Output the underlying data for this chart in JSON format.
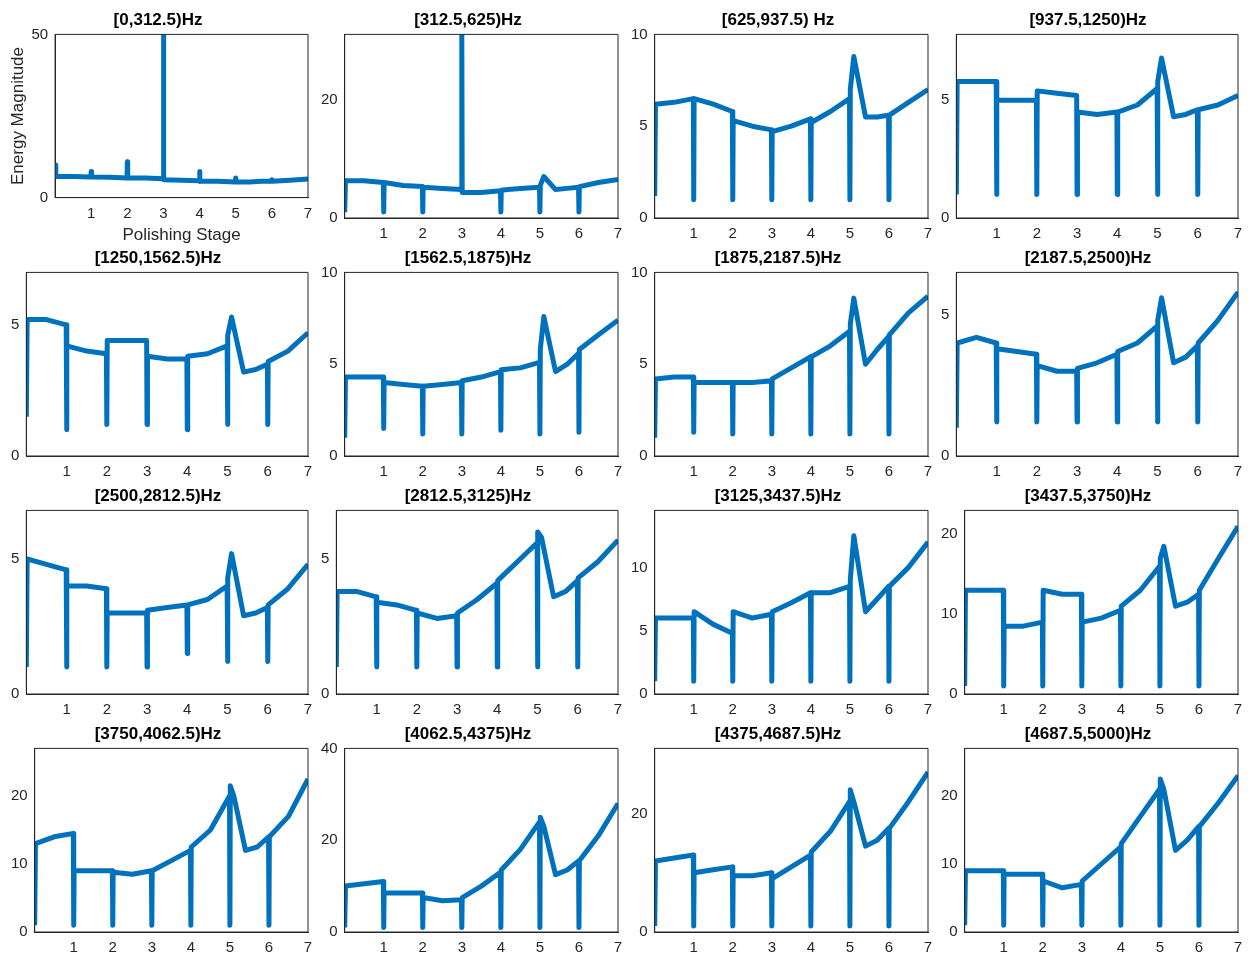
{
  "chart_data": [
    {
      "type": "line",
      "title": "[0,312.5)Hz",
      "xlabel": "Polishing Stage",
      "ylabel": "Energy Magnitude",
      "xlim": [
        0,
        7
      ],
      "xticks": [
        1,
        2,
        3,
        4,
        5,
        6,
        7
      ],
      "ylim": [
        0,
        50
      ],
      "yticks": [
        0,
        50
      ],
      "x": [
        0,
        0.02,
        0.5,
        0.99,
        1,
        1.01,
        1.5,
        1.99,
        2,
        2.01,
        2.5,
        2.99,
        3,
        3.01,
        3.5,
        3.99,
        4,
        4.01,
        4.5,
        4.99,
        5,
        5.01,
        5.1,
        5.4,
        5.7,
        5.99,
        6,
        6.01,
        6.5,
        7
      ],
      "series": [
        {
          "color": "#0072bd",
          "values": [
            10,
            6.5,
            6.5,
            6.3,
            8,
            6.3,
            6.2,
            6,
            11,
            6,
            6,
            5.8,
            50,
            5.5,
            5.3,
            5.2,
            8,
            5,
            5,
            4.8,
            6,
            4.8,
            4.8,
            4.8,
            5,
            5,
            5.5,
            5,
            5.3,
            5.7
          ]
        }
      ]
    },
    {
      "type": "line",
      "title": "[312.5,625)Hz",
      "xlim": [
        0,
        7
      ],
      "xticks": [
        1,
        2,
        3,
        4,
        5,
        6,
        7
      ],
      "ylim": [
        0,
        31
      ],
      "yticks": [
        0,
        20
      ],
      "x": [
        0,
        0.02,
        0.5,
        0.99,
        1,
        1.01,
        1.5,
        1.99,
        2,
        2.01,
        2.5,
        2.99,
        3,
        3.01,
        3.5,
        3.99,
        4,
        4.01,
        4.5,
        4.99,
        5,
        5.01,
        5.1,
        5.4,
        5.7,
        5.99,
        6,
        6.01,
        6.5,
        7
      ],
      "series": [
        {
          "color": "#0072bd",
          "values": [
            1,
            6.3,
            6.3,
            6,
            1,
            6,
            5.5,
            5.3,
            1,
            5.2,
            5,
            4.8,
            31,
            4.3,
            4.3,
            4.6,
            1,
            4.7,
            5,
            5.2,
            1,
            5.5,
            7,
            4.8,
            5,
            5.2,
            1,
            5.3,
            6,
            6.5
          ]
        }
      ]
    },
    {
      "type": "line",
      "title": "[625,937.5) Hz",
      "xlim": [
        0,
        7
      ],
      "xticks": [
        1,
        2,
        3,
        4,
        5,
        6,
        7
      ],
      "ylim": [
        0,
        10
      ],
      "yticks": [
        0,
        5,
        10
      ],
      "x": [
        0,
        0.02,
        0.5,
        0.99,
        1,
        1.01,
        1.5,
        1.99,
        2,
        2.01,
        2.5,
        2.99,
        3,
        3.01,
        3.5,
        3.99,
        4,
        4.01,
        4.5,
        4.99,
        5,
        5.01,
        5.1,
        5.4,
        5.7,
        5.99,
        6,
        6.01,
        6.5,
        7
      ],
      "series": [
        {
          "color": "#0072bd",
          "values": [
            1.2,
            6.2,
            6.3,
            6.5,
            1,
            6.5,
            6.2,
            5.8,
            1,
            5.3,
            5,
            4.8,
            1,
            4.7,
            5,
            5.4,
            1,
            5.2,
            5.8,
            6.5,
            1,
            7,
            8.8,
            5.5,
            5.5,
            5.6,
            1,
            5.6,
            6.3,
            7
          ]
        }
      ]
    },
    {
      "type": "line",
      "title": "[937.5,1250)Hz",
      "xlim": [
        0,
        7
      ],
      "xticks": [
        1,
        2,
        3,
        4,
        5,
        6,
        7
      ],
      "ylim": [
        0,
        7.8
      ],
      "yticks": [
        0,
        5
      ],
      "x": [
        0,
        0.02,
        0.5,
        0.99,
        1,
        1.01,
        1.5,
        1.99,
        2,
        2.01,
        2.5,
        2.99,
        3,
        3.01,
        3.5,
        3.99,
        4,
        4.01,
        4.5,
        4.99,
        5,
        5.01,
        5.1,
        5.4,
        5.7,
        5.99,
        6,
        6.01,
        6.5,
        7
      ],
      "series": [
        {
          "color": "#0072bd",
          "values": [
            1,
            5.8,
            5.8,
            5.8,
            1,
            5,
            5,
            5,
            1,
            5.4,
            5.3,
            5.2,
            1,
            4.5,
            4.4,
            4.5,
            1,
            4.5,
            4.8,
            5.5,
            1,
            5.8,
            6.8,
            4.3,
            4.4,
            4.6,
            1,
            4.6,
            4.8,
            5.2
          ]
        }
      ]
    },
    {
      "type": "line",
      "title": "[1250,1562.5)Hz",
      "xlim": [
        0,
        7
      ],
      "xticks": [
        1,
        2,
        3,
        4,
        5,
        6,
        7
      ],
      "ylim": [
        0,
        7
      ],
      "yticks": [
        0,
        5
      ],
      "x": [
        0,
        0.02,
        0.5,
        0.99,
        1,
        1.01,
        1.5,
        1.99,
        2,
        2.01,
        2.5,
        2.99,
        3,
        3.01,
        3.5,
        3.99,
        4,
        4.01,
        4.5,
        4.99,
        5,
        5.01,
        5.1,
        5.4,
        5.7,
        5.99,
        6,
        6.01,
        6.5,
        7
      ],
      "series": [
        {
          "color": "#0072bd",
          "values": [
            1.5,
            5.2,
            5.2,
            5,
            1,
            4.2,
            4,
            3.9,
            1.2,
            4.4,
            4.4,
            4.4,
            1.2,
            3.8,
            3.7,
            3.7,
            1,
            3.8,
            3.9,
            4.2,
            1.2,
            4.6,
            5.3,
            3.2,
            3.3,
            3.5,
            1.2,
            3.6,
            4,
            4.7
          ]
        }
      ]
    },
    {
      "type": "line",
      "title": "[1562.5,1875)Hz",
      "xlim": [
        0,
        7
      ],
      "xticks": [
        1,
        2,
        3,
        4,
        5,
        6,
        7
      ],
      "ylim": [
        0,
        10
      ],
      "yticks": [
        0,
        5,
        10
      ],
      "x": [
        0,
        0.02,
        0.5,
        0.99,
        1,
        1.01,
        1.5,
        1.99,
        2,
        2.01,
        2.5,
        2.99,
        3,
        3.01,
        3.5,
        3.99,
        4,
        4.01,
        4.5,
        4.99,
        5,
        5.01,
        5.1,
        5.4,
        5.7,
        5.99,
        6,
        6.01,
        6.5,
        7
      ],
      "series": [
        {
          "color": "#0072bd",
          "values": [
            1,
            4.3,
            4.3,
            4.3,
            1.5,
            4,
            3.9,
            3.8,
            1.2,
            3.8,
            3.9,
            4,
            1.2,
            4.1,
            4.3,
            4.6,
            1.4,
            4.7,
            4.8,
            5.1,
            1.2,
            5.8,
            7.6,
            4.6,
            5,
            5.6,
            1.3,
            5.8,
            6.6,
            7.4
          ]
        }
      ]
    },
    {
      "type": "line",
      "title": "[1875,2187.5)Hz",
      "xlim": [
        0,
        7
      ],
      "xticks": [
        1,
        2,
        3,
        4,
        5,
        6,
        7
      ],
      "ylim": [
        0,
        10
      ],
      "yticks": [
        0,
        5,
        10
      ],
      "x": [
        0,
        0.02,
        0.5,
        0.99,
        1,
        1.01,
        1.5,
        1.99,
        2,
        2.01,
        2.5,
        2.99,
        3,
        3.01,
        3.5,
        3.99,
        4,
        4.01,
        4.5,
        4.99,
        5,
        5.01,
        5.1,
        5.4,
        5.7,
        5.99,
        6,
        6.01,
        6.5,
        7
      ],
      "series": [
        {
          "color": "#0072bd",
          "values": [
            1,
            4.2,
            4.3,
            4.3,
            1.3,
            4,
            4,
            4,
            1.2,
            4,
            4,
            4.1,
            1.2,
            4.2,
            4.8,
            5.4,
            1.2,
            5.4,
            6,
            6.8,
            1.2,
            7.2,
            8.6,
            5,
            5.8,
            6.5,
            1.2,
            6.6,
            7.8,
            8.7
          ]
        }
      ]
    },
    {
      "type": "line",
      "title": "[2187.5,2500)Hz",
      "xlim": [
        0,
        7
      ],
      "xticks": [
        1,
        2,
        3,
        4,
        5,
        6,
        7
      ],
      "ylim": [
        0,
        6.5
      ],
      "yticks": [
        0,
        5
      ],
      "x": [
        0,
        0.02,
        0.5,
        0.99,
        1,
        1.01,
        1.5,
        1.99,
        2,
        2.01,
        2.5,
        2.99,
        3,
        3.01,
        3.5,
        3.99,
        4,
        4.01,
        4.5,
        4.99,
        5,
        5.01,
        5.1,
        5.4,
        5.7,
        5.99,
        6,
        6.01,
        6.5,
        7
      ],
      "series": [
        {
          "color": "#0072bd",
          "values": [
            1,
            4,
            4.2,
            4,
            1.2,
            3.8,
            3.7,
            3.6,
            1.2,
            3.2,
            3,
            3,
            1.2,
            3.1,
            3.3,
            3.6,
            1.2,
            3.7,
            4,
            4.6,
            1.2,
            4.8,
            5.6,
            3.3,
            3.5,
            3.9,
            1.2,
            4,
            4.8,
            5.8
          ]
        }
      ]
    },
    {
      "type": "line",
      "title": "[2500,2812.5)Hz",
      "xlim": [
        0,
        7
      ],
      "xticks": [
        1,
        2,
        3,
        4,
        5,
        6,
        7
      ],
      "ylim": [
        0,
        6.8
      ],
      "yticks": [
        0,
        5
      ],
      "x": [
        0,
        0.02,
        0.5,
        0.99,
        1,
        1.01,
        1.5,
        1.99,
        2,
        2.01,
        2.5,
        2.99,
        3,
        3.01,
        3.5,
        3.99,
        4,
        4.01,
        4.5,
        4.99,
        5,
        5.01,
        5.1,
        5.4,
        5.7,
        5.99,
        6,
        6.01,
        6.5,
        7
      ],
      "series": [
        {
          "color": "#0072bd",
          "values": [
            1,
            5,
            4.8,
            4.6,
            1,
            4,
            4,
            3.9,
            1,
            3,
            3,
            3,
            1,
            3.1,
            3.2,
            3.3,
            1.5,
            3.3,
            3.5,
            4,
            1.2,
            4.3,
            5.2,
            2.9,
            3,
            3.2,
            1.2,
            3.3,
            3.9,
            4.8
          ]
        }
      ]
    },
    {
      "type": "line",
      "title": "[2812.5,3125)Hz",
      "xlim": [
        0,
        7
      ],
      "xticks": [
        1,
        2,
        3,
        4,
        5,
        6,
        7
      ],
      "ylim": [
        0,
        6.8
      ],
      "yticks": [
        0,
        5
      ],
      "x": [
        0,
        0.02,
        0.5,
        0.99,
        1,
        1.01,
        1.5,
        1.99,
        2,
        2.01,
        2.5,
        2.99,
        3,
        3.01,
        3.5,
        3.99,
        4,
        4.01,
        4.5,
        4.99,
        5,
        5.01,
        5.1,
        5.4,
        5.7,
        5.99,
        6,
        6.01,
        6.5,
        7
      ],
      "series": [
        {
          "color": "#0072bd",
          "values": [
            1,
            3.8,
            3.8,
            3.6,
            1,
            3.4,
            3.3,
            3.1,
            1,
            3,
            2.8,
            2.9,
            1,
            3,
            3.5,
            4.1,
            1,
            4.2,
            4.9,
            5.6,
            1,
            6,
            5.8,
            3.6,
            3.8,
            4.2,
            1,
            4.3,
            4.9,
            5.7
          ]
        }
      ]
    },
    {
      "type": "line",
      "title": "[3125,3437.5)Hz",
      "xlim": [
        0,
        7
      ],
      "xticks": [
        1,
        2,
        3,
        4,
        5,
        6,
        7
      ],
      "ylim": [
        0,
        14.5
      ],
      "yticks": [
        0,
        5,
        10
      ],
      "x": [
        0,
        0.02,
        0.5,
        0.99,
        1,
        1.01,
        1.5,
        1.99,
        2,
        2.01,
        2.5,
        2.99,
        3,
        3.01,
        3.5,
        3.99,
        4,
        4.01,
        4.5,
        4.99,
        5,
        5.01,
        5.1,
        5.4,
        5.7,
        5.99,
        6,
        6.01,
        6.5,
        7
      ],
      "series": [
        {
          "color": "#0072bd",
          "values": [
            1,
            6,
            6,
            6,
            1,
            6.5,
            5.5,
            4.8,
            1,
            6.5,
            6,
            6.3,
            1,
            6.5,
            7.2,
            8,
            1,
            8,
            8,
            8.5,
            1,
            9,
            12.5,
            6.5,
            7.5,
            8.5,
            1,
            8.5,
            10,
            12
          ]
        }
      ]
    },
    {
      "type": "line",
      "title": "[3437.5,3750)Hz",
      "xlim": [
        0,
        7
      ],
      "xticks": [
        1,
        2,
        3,
        4,
        5,
        6,
        7
      ],
      "ylim": [
        0,
        23
      ],
      "yticks": [
        0,
        10,
        20
      ],
      "x": [
        0,
        0.02,
        0.5,
        0.99,
        1,
        1.01,
        1.5,
        1.99,
        2,
        2.01,
        2.5,
        2.99,
        3,
        3.01,
        3.5,
        3.99,
        4,
        4.01,
        4.5,
        4.99,
        5,
        5.01,
        5.1,
        5.4,
        5.7,
        5.99,
        6,
        6.01,
        6.5,
        7
      ],
      "series": [
        {
          "color": "#0072bd",
          "values": [
            1,
            13,
            13,
            13,
            1,
            8.5,
            8.5,
            9,
            1,
            13,
            12.5,
            12.5,
            1,
            9,
            9.5,
            10.5,
            1,
            11,
            13,
            16,
            1,
            17,
            18.5,
            11,
            11.5,
            12.5,
            1,
            13,
            17,
            21
          ]
        }
      ]
    },
    {
      "type": "line",
      "title": "[3750,4062.5)Hz",
      "xlim": [
        0,
        7
      ],
      "xticks": [
        1,
        2,
        3,
        4,
        5,
        6,
        7
      ],
      "ylim": [
        0,
        27
      ],
      "yticks": [
        0,
        10,
        20
      ],
      "x": [
        0,
        0.02,
        0.5,
        0.99,
        1,
        1.01,
        1.5,
        1.99,
        2,
        2.01,
        2.5,
        2.99,
        3,
        3.01,
        3.5,
        3.99,
        4,
        4.01,
        4.5,
        4.99,
        5,
        5.01,
        5.1,
        5.4,
        5.7,
        5.99,
        6,
        6.01,
        6.5,
        7
      ],
      "series": [
        {
          "color": "#0072bd",
          "values": [
            1,
            13,
            14,
            14.5,
            1,
            9,
            9,
            9,
            1,
            8.8,
            8.5,
            9,
            1,
            9,
            10.5,
            12,
            1,
            12.5,
            15,
            20,
            1,
            21.5,
            20,
            12,
            12.5,
            14,
            1,
            14,
            17,
            22.5
          ]
        }
      ]
    },
    {
      "type": "line",
      "title": "[4062.5,4375)Hz",
      "xlim": [
        0,
        7
      ],
      "xticks": [
        1,
        2,
        3,
        4,
        5,
        6,
        7
      ],
      "ylim": [
        0,
        40
      ],
      "yticks": [
        0,
        20,
        40
      ],
      "x": [
        0,
        0.02,
        0.5,
        0.99,
        1,
        1.01,
        1.5,
        1.99,
        2,
        2.01,
        2.5,
        2.99,
        3,
        3.01,
        3.5,
        3.99,
        4,
        4.01,
        4.5,
        4.99,
        5,
        5.01,
        5.1,
        5.4,
        5.7,
        5.99,
        6,
        6.01,
        6.5,
        7
      ],
      "series": [
        {
          "color": "#0072bd",
          "values": [
            1,
            10,
            10.5,
            11,
            1,
            8.5,
            8.5,
            8.5,
            1,
            7.5,
            6.8,
            7,
            1,
            7.5,
            10,
            13,
            1,
            13.5,
            18,
            24,
            1,
            25,
            23,
            12.5,
            13.5,
            15.5,
            1,
            15.5,
            21,
            28
          ]
        }
      ]
    },
    {
      "type": "line",
      "title": "[4375,4687.5)Hz",
      "xlim": [
        0,
        7
      ],
      "xticks": [
        1,
        2,
        3,
        4,
        5,
        6,
        7
      ],
      "ylim": [
        0,
        31
      ],
      "yticks": [
        0,
        20
      ],
      "x": [
        0,
        0.02,
        0.5,
        0.99,
        1,
        1.01,
        1.5,
        1.99,
        2,
        2.01,
        2.5,
        2.99,
        3,
        3.01,
        3.5,
        3.99,
        4,
        4.01,
        4.5,
        4.99,
        5,
        5.01,
        5.1,
        5.4,
        5.7,
        5.99,
        6,
        6.01,
        6.5,
        7
      ],
      "series": [
        {
          "color": "#0072bd",
          "values": [
            1,
            12,
            12.5,
            13,
            1,
            10,
            10.5,
            11,
            1,
            9.5,
            9.5,
            10,
            1,
            9,
            11,
            13,
            1,
            13.5,
            17,
            22,
            1,
            24,
            22,
            14.5,
            15.5,
            17.5,
            1,
            17.5,
            22,
            27
          ]
        }
      ]
    },
    {
      "type": "line",
      "title": "[4687.5,5000)Hz",
      "xlim": [
        0,
        7
      ],
      "xticks": [
        1,
        2,
        3,
        4,
        5,
        6,
        7
      ],
      "ylim": [
        0,
        27
      ],
      "yticks": [
        0,
        10,
        20
      ],
      "x": [
        0,
        0.02,
        0.5,
        0.99,
        1,
        1.01,
        1.5,
        1.99,
        2,
        2.01,
        2.5,
        2.99,
        3,
        3.01,
        3.5,
        3.99,
        4,
        4.01,
        4.5,
        4.99,
        5,
        5.01,
        5.1,
        5.4,
        5.7,
        5.99,
        6,
        6.01,
        6.5,
        7
      ],
      "series": [
        {
          "color": "#0072bd",
          "values": [
            1,
            9,
            9,
            9,
            1,
            8.5,
            8.5,
            8.5,
            1,
            7.5,
            6.5,
            7,
            1,
            7.5,
            10,
            12.5,
            1,
            13,
            17,
            21,
            1,
            22.5,
            21,
            12,
            13.5,
            15.5,
            1,
            15.5,
            19,
            23
          ]
        }
      ]
    }
  ]
}
